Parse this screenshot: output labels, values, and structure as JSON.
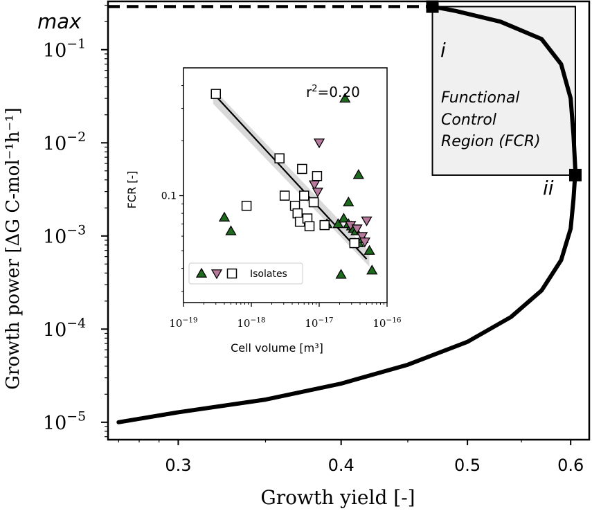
{
  "chart_data": [
    {
      "type": "line",
      "xlabel": "Growth yield [-]",
      "ylabel": "Growth power [ΔG C-mol⁻¹h⁻¹]",
      "xscale": "log",
      "yscale": "log",
      "xlim": [
        0.265,
        0.62
      ],
      "ylim": [
        6.5e-06,
        0.33
      ],
      "xticks": [
        {
          "value": 0.3,
          "label": "0.3"
        },
        {
          "value": 0.4,
          "label": "0.4"
        },
        {
          "value": 0.5,
          "label": "0.5"
        },
        {
          "value": 0.6,
          "label": "0.6"
        }
      ],
      "yticks": [
        {
          "value": 1e-05,
          "base": "10",
          "exp": "−5"
        },
        {
          "value": 0.0001,
          "base": "10",
          "exp": "−4"
        },
        {
          "value": 0.001,
          "base": "10",
          "exp": "−3"
        },
        {
          "value": 0.01,
          "base": "10",
          "exp": "−2"
        },
        {
          "value": 0.1,
          "base": "10",
          "exp": "−1"
        }
      ],
      "max_line": {
        "value": 0.29,
        "label": "max"
      },
      "curve": {
        "x": [
          0.27,
          0.3,
          0.35,
          0.4,
          0.45,
          0.5,
          0.54,
          0.57,
          0.59,
          0.6,
          0.603,
          0.605,
          0.603,
          0.6,
          0.59,
          0.57,
          0.53,
          0.49,
          0.47
        ],
        "y": [
          1e-05,
          1.28e-05,
          1.75e-05,
          2.6e-05,
          4.15e-05,
          7.3e-05,
          0.000135,
          0.00026,
          0.00055,
          0.0012,
          0.0025,
          0.005,
          0.012,
          0.03,
          0.07,
          0.13,
          0.2,
          0.26,
          0.29
        ]
      },
      "markers": [
        {
          "x": 0.47,
          "y": 0.29,
          "label": "i"
        },
        {
          "x": 0.605,
          "y": 0.0045,
          "label": "ii"
        }
      ],
      "region": {
        "x": [
          0.47,
          0.605
        ],
        "y": [
          0.0045,
          0.29
        ],
        "label_lines": [
          "Functional",
          "Control",
          "Region (FCR)"
        ]
      },
      "grid": false
    },
    {
      "type": "scatter",
      "xlabel": "Cell volume [m³]",
      "ylabel": "FCR [-]",
      "xscale": "log",
      "yscale": "log",
      "xlim": [
        1e-19,
        1e-16
      ],
      "ylim": [
        0.026,
        0.5
      ],
      "xticks": [
        {
          "value": 1e-19,
          "base": "10",
          "exp": "−19"
        },
        {
          "value": 1e-18,
          "base": "10",
          "exp": "−18"
        },
        {
          "value": 1e-17,
          "base": "10",
          "exp": "−17"
        },
        {
          "value": 1e-16,
          "base": "10",
          "exp": "−16"
        }
      ],
      "yticks": [
        {
          "value": 0.1,
          "label": "0.1"
        }
      ],
      "annotation": {
        "text": "r",
        "sup": "2",
        "rest": "=0.20"
      },
      "legend": {
        "position": "lower-left",
        "label": "Isolates"
      },
      "colors": {
        "triangle_up": "#1e6b1e",
        "triangle_down": "#b87a9c",
        "square": "#ffffff",
        "band": "#d9d9d9"
      },
      "fit": {
        "x": [
          3e-19,
          5e-17
        ],
        "y": [
          0.35,
          0.045
        ]
      },
      "series": [
        {
          "marker": "triangle-up",
          "x": [
            4e-19,
            5e-19,
            1.3e-17,
            1.9e-17,
            2.3e-17,
            2.7e-17,
            3e-17,
            3.2e-17,
            3.5e-17,
            3.8e-17,
            4.4e-17,
            5.5e-17,
            6e-17,
            2.4e-17,
            2.7e-17,
            2.1e-17,
            3.8e-17
          ],
          "y": [
            0.076,
            0.064,
            0.07,
            0.07,
            0.075,
            0.07,
            0.068,
            0.066,
            0.064,
            0.055,
            0.058,
            0.05,
            0.039,
            0.34,
            0.092,
            0.037,
            0.13
          ]
        },
        {
          "marker": "triangle-down",
          "x": [
            8.5e-18,
            9.5e-18,
            1e-17,
            2.9e-17,
            3.6e-17,
            4.3e-17,
            4.7e-17,
            5e-17
          ],
          "y": [
            0.115,
            0.105,
            0.195,
            0.069,
            0.066,
            0.06,
            0.056,
            0.073
          ]
        },
        {
          "marker": "square",
          "x": [
            3e-19,
            8.5e-19,
            2.6e-18,
            3.1e-18,
            4.4e-18,
            4.8e-18,
            5.2e-18,
            5.6e-18,
            6e-18,
            6.7e-18,
            7.2e-18,
            8.3e-18,
            9.3e-18,
            1.2e-17,
            3.3e-17
          ],
          "y": [
            0.36,
            0.088,
            0.16,
            0.1,
            0.088,
            0.08,
            0.072,
            0.14,
            0.1,
            0.075,
            0.068,
            0.092,
            0.128,
            0.069,
            0.055
          ]
        }
      ],
      "grid": false
    }
  ]
}
